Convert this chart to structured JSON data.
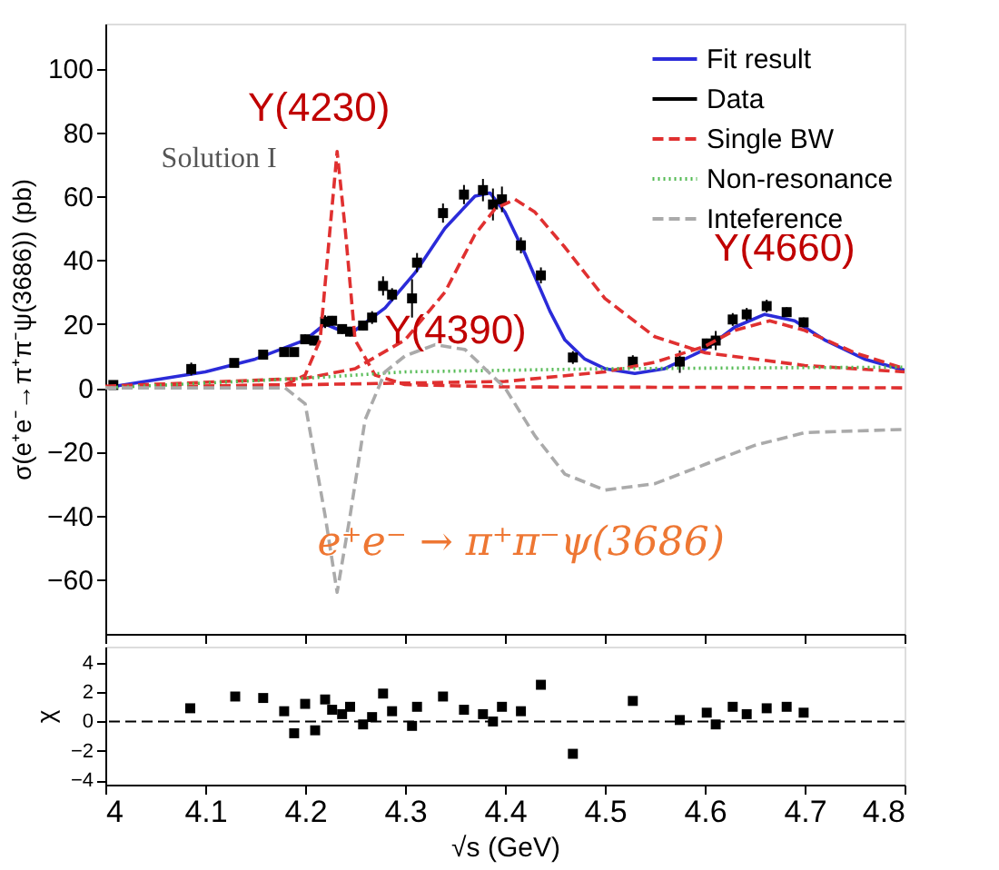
{
  "chart_data": [
    {
      "type": "line",
      "ylabel": "σ(e⁺e⁻→π⁺π⁻ψ(3686)) (pb)",
      "xlim": [
        4,
        4.8
      ],
      "xticks": [
        4,
        4.1,
        4.2,
        4.3,
        4.4,
        4.5,
        4.6,
        4.7,
        4.8
      ],
      "ylim": [
        -77,
        114
      ],
      "yticks": [
        -60,
        -40,
        -20,
        0,
        20,
        40,
        60,
        80,
        100
      ],
      "tick_labels": "y",
      "legend": "top right",
      "grid": false,
      "annotations": [
        "Solution I",
        "e⁺e⁻ → π⁺π⁻ψ(3686)",
        {
          "text": "Y(4230)",
          "x": 4.232,
          "y": 74
        },
        {
          "text": "Y(4390)",
          "x": 4.405,
          "y": 59
        },
        {
          "text": "Y(4660)",
          "x": 4.665,
          "y": 21
        }
      ],
      "series": [
        {
          "name": "Fit result",
          "type": "line",
          "color": "#2b2bd9",
          "line_style": "solid",
          "x": [
            4.0,
            4.05,
            4.1,
            4.15,
            4.2,
            4.22,
            4.235,
            4.25,
            4.28,
            4.31,
            4.34,
            4.37,
            4.385,
            4.4,
            4.42,
            4.445,
            4.46,
            4.48,
            4.5,
            4.53,
            4.56,
            4.6,
            4.63,
            4.66,
            4.69,
            4.72,
            4.76,
            4.8
          ],
          "values": [
            0,
            2.5,
            5,
            9,
            15,
            20,
            18,
            18,
            25,
            36,
            50,
            60,
            61,
            55,
            42,
            24,
            15,
            9,
            6,
            4.5,
            6,
            12,
            19,
            23,
            21,
            15,
            9,
            5.5
          ]
        },
        {
          "name": "Data",
          "type": "scatter",
          "color": "#000000",
          "marker": "square",
          "x": [
            4.008,
            4.086,
            4.129,
            4.158,
            4.179,
            4.189,
            4.2,
            4.209,
            4.22,
            4.227,
            4.237,
            4.245,
            4.258,
            4.267,
            4.278,
            4.287,
            4.307,
            4.312,
            4.338,
            4.359,
            4.378,
            4.388,
            4.397,
            4.416,
            4.436,
            4.468,
            4.528,
            4.575,
            4.602,
            4.611,
            4.628,
            4.642,
            4.662,
            4.682,
            4.699
          ],
          "values": [
            0.9,
            5.9,
            7.8,
            10.4,
            11.2,
            11.2,
            15.2,
            14.8,
            20.7,
            21,
            18.4,
            17.6,
            19.5,
            22,
            31.9,
            29.2,
            28,
            39.2,
            54.7,
            60.5,
            61.9,
            57.4,
            59,
            44.6,
            35.2,
            9.5,
            8.2,
            8.2,
            13.9,
            14.8,
            21.4,
            23,
            25.6,
            23.7,
            20.5
          ],
          "errors": [
            0.5,
            2,
            1,
            1,
            1,
            1,
            1.5,
            1.5,
            2,
            1.5,
            1.5,
            1.5,
            1.5,
            2,
            3,
            2,
            6,
            3,
            3,
            3,
            3.5,
            5,
            4,
            2.5,
            2.5,
            2,
            2,
            3.5,
            1.5,
            3,
            2,
            2,
            2,
            1.5,
            1.5
          ]
        },
        {
          "name": "Single BW",
          "type": "line",
          "color": "#e03030",
          "line_style": "dashed",
          "x": [
            4.0,
            4.18,
            4.2,
            4.215,
            4.225,
            4.232,
            4.24,
            4.25,
            4.27,
            4.3,
            4.4,
            4.8
          ],
          "values": [
            0,
            1,
            4,
            15,
            50,
            74,
            50,
            15,
            4,
            1,
            0.3,
            0
          ]
        },
        {
          "type": "line",
          "color": "#e03030",
          "line_style": "dashed",
          "x": [
            4.0,
            4.2,
            4.25,
            4.3,
            4.34,
            4.37,
            4.39,
            4.41,
            4.43,
            4.46,
            4.5,
            4.55,
            4.6,
            4.7,
            4.8
          ],
          "values": [
            0.5,
            3,
            6,
            15,
            30,
            48,
            56,
            59,
            55,
            44,
            28,
            16,
            11,
            7,
            5
          ]
        },
        {
          "type": "line",
          "color": "#e03030",
          "line_style": "dashed",
          "x": [
            4.0,
            4.4,
            4.5,
            4.55,
            4.6,
            4.63,
            4.665,
            4.7,
            4.75,
            4.8
          ],
          "values": [
            0,
            2,
            5,
            8,
            13,
            18,
            21,
            18,
            11,
            6
          ]
        },
        {
          "name": "Non-resonance",
          "type": "line",
          "color": "#55bb55",
          "line_style": "dotted",
          "x": [
            4.0,
            4.1,
            4.2,
            4.3,
            4.5,
            4.8
          ],
          "values": [
            0,
            1.5,
            3,
            5,
            6,
            6.5
          ]
        },
        {
          "name": "Inteference",
          "type": "line",
          "color": "#aaaaaa",
          "line_style": "dashed",
          "x": [
            4.0,
            4.18,
            4.2,
            4.22,
            4.232,
            4.245,
            4.26,
            4.28,
            4.3,
            4.33,
            4.36,
            4.4,
            4.43,
            4.46,
            4.5,
            4.55,
            4.6,
            4.65,
            4.7,
            4.8
          ],
          "values": [
            0,
            0,
            -5,
            -40,
            -64,
            -40,
            -10,
            5,
            10,
            13.5,
            12,
            0,
            -15,
            -27,
            -32,
            -30,
            -24,
            -18,
            -14,
            -13
          ]
        }
      ]
    },
    {
      "type": "scatter",
      "xlabel": "√s (GeV)",
      "ylabel": "χ",
      "xlim": [
        4,
        4.8
      ],
      "xticks": [
        4,
        4.1,
        4.2,
        4.3,
        4.4,
        4.5,
        4.6,
        4.7,
        4.8
      ],
      "ylim": [
        -4.3,
        5.1
      ],
      "yticks": [
        -4,
        -2,
        0,
        2,
        4
      ],
      "grid": false,
      "marker": "square",
      "ref_lines": [
        {
          "axis": "y",
          "value": 0,
          "line_style": "dashed",
          "color": "#000000"
        }
      ],
      "series": [
        {
          "color": "#000000",
          "x": [
            4.085,
            4.13,
            4.158,
            4.179,
            4.189,
            4.2,
            4.21,
            4.22,
            4.227,
            4.237,
            4.245,
            4.258,
            4.267,
            4.278,
            4.287,
            4.307,
            4.312,
            4.338,
            4.359,
            4.378,
            4.388,
            4.397,
            4.416,
            4.436,
            4.468,
            4.528,
            4.575,
            4.602,
            4.611,
            4.628,
            4.642,
            4.662,
            4.682,
            4.699
          ],
          "values": [
            0.9,
            1.7,
            1.6,
            0.7,
            -0.8,
            1.2,
            -0.6,
            1.5,
            0.8,
            0.5,
            1.0,
            -0.2,
            0.3,
            1.9,
            0.7,
            -0.3,
            1.0,
            1.7,
            0.8,
            0.5,
            0,
            1.0,
            0.7,
            2.5,
            -2.2,
            1.4,
            0.1,
            0.6,
            -0.2,
            1.0,
            0.5,
            0.9,
            1.0,
            0.6
          ]
        }
      ]
    }
  ]
}
